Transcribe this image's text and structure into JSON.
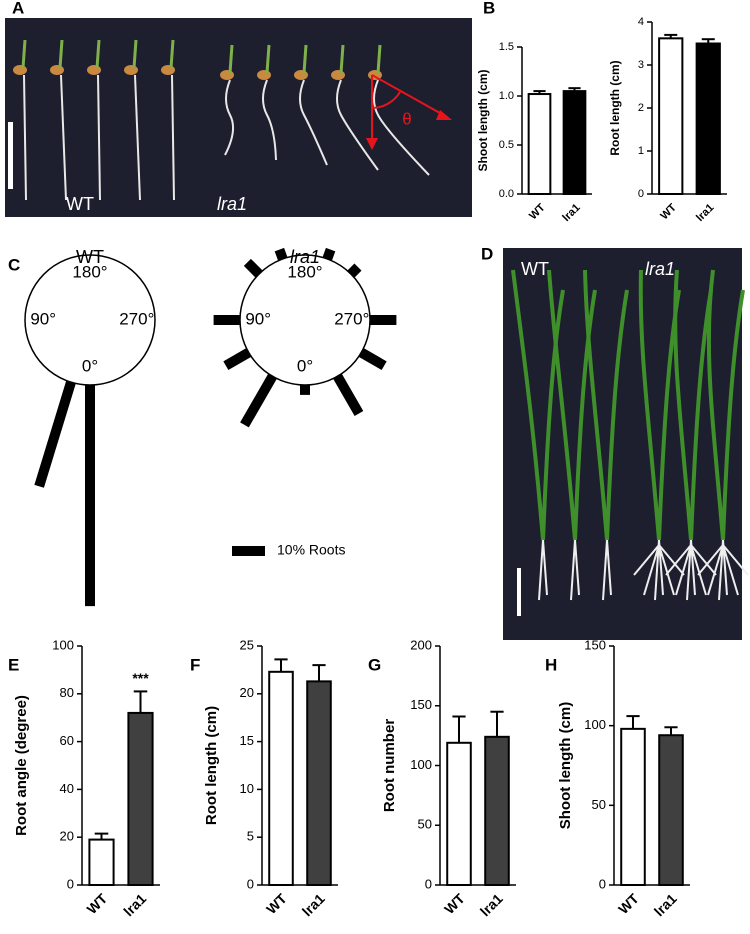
{
  "chart_data": [
    {
      "type": "photo",
      "panel": "A",
      "labels": [
        "WT",
        "lra1"
      ],
      "angle_symbol": "θ"
    },
    {
      "type": "bar",
      "panel": "B",
      "ylabel": "Shoot length (cm)",
      "categories": [
        "WT",
        "lra1"
      ],
      "values": [
        1.02,
        1.05
      ],
      "errors": [
        0.03,
        0.03
      ],
      "colors": [
        "#ffffff",
        "#000000"
      ],
      "ylim": [
        0,
        1.5
      ],
      "yticks": [
        {
          "value": 0,
          "label": "0.0"
        },
        {
          "value": 0.5,
          "label": "0.5"
        },
        {
          "value": 1,
          "label": "1.0"
        },
        {
          "value": 1.5,
          "label": "1.5"
        }
      ]
    },
    {
      "type": "bar",
      "ylabel": "Root length (cm)",
      "categories": [
        "WT",
        "lra1"
      ],
      "values": [
        3.62,
        3.5
      ],
      "errors": [
        0.08,
        0.1
      ],
      "colors": [
        "#ffffff",
        "#000000"
      ],
      "ylim": [
        0,
        4
      ],
      "yticks": [
        0,
        1,
        2,
        3,
        4
      ]
    },
    {
      "type": "polar",
      "panel": "C",
      "title": "WT",
      "angles": [
        0,
        17
      ],
      "values": [
        67,
        33
      ],
      "angle_ticks": [
        {
          "value": 180,
          "label": "180°"
        },
        {
          "value": 90,
          "label": "90°"
        },
        {
          "value": 270,
          "label": "270°"
        },
        {
          "value": 0,
          "label": "0°"
        }
      ],
      "scale_bar": {
        "value": 10,
        "label": "10% Roots"
      }
    },
    {
      "type": "polar",
      "title": "lra1",
      "angles": [
        0,
        30,
        60,
        90,
        135,
        160,
        200,
        225,
        270,
        300,
        330
      ],
      "values": [
        3,
        17,
        8,
        8,
        5,
        3,
        3,
        3,
        8,
        8,
        13
      ],
      "angle_ticks": [
        {
          "value": 180,
          "label": "180°"
        },
        {
          "value": 90,
          "label": "90°"
        },
        {
          "value": 270,
          "label": "270°"
        },
        {
          "value": 0,
          "label": "0°"
        }
      ]
    },
    {
      "type": "photo",
      "panel": "D",
      "labels": [
        "WT",
        "lra1"
      ]
    },
    {
      "type": "bar",
      "panel": "E",
      "ylabel": "Root angle (degree)",
      "categories": [
        "WT",
        "lra1"
      ],
      "values": [
        19,
        72
      ],
      "errors": [
        2.5,
        9
      ],
      "value_annotations": [
        null,
        "***"
      ],
      "colors": [
        "#ffffff",
        "#404040"
      ],
      "ylim": [
        0,
        100
      ],
      "yticks": [
        0,
        20,
        40,
        60,
        80,
        100
      ]
    },
    {
      "type": "bar",
      "panel": "F",
      "ylabel": "Root length (cm)",
      "categories": [
        "WT",
        "lra1"
      ],
      "values": [
        22.3,
        21.3
      ],
      "errors": [
        1.3,
        1.7
      ],
      "colors": [
        "#ffffff",
        "#404040"
      ],
      "ylim": [
        0,
        25
      ],
      "yticks": [
        0,
        5,
        10,
        15,
        20,
        25
      ]
    },
    {
      "type": "bar",
      "panel": "G",
      "ylabel": "Root number",
      "categories": [
        "WT",
        "lra1"
      ],
      "values": [
        119,
        124
      ],
      "errors": [
        22,
        21
      ],
      "colors": [
        "#ffffff",
        "#404040"
      ],
      "ylim": [
        0,
        200
      ],
      "yticks": [
        0,
        50,
        100,
        150,
        200
      ]
    },
    {
      "type": "bar",
      "panel": "H",
      "ylabel": "Shoot length (cm)",
      "categories": [
        "WT",
        "lra1"
      ],
      "values": [
        98,
        94
      ],
      "errors": [
        8,
        5
      ],
      "colors": [
        "#ffffff",
        "#404040"
      ],
      "ylim": [
        0,
        150
      ],
      "yticks": [
        0,
        50,
        100,
        150
      ]
    }
  ]
}
